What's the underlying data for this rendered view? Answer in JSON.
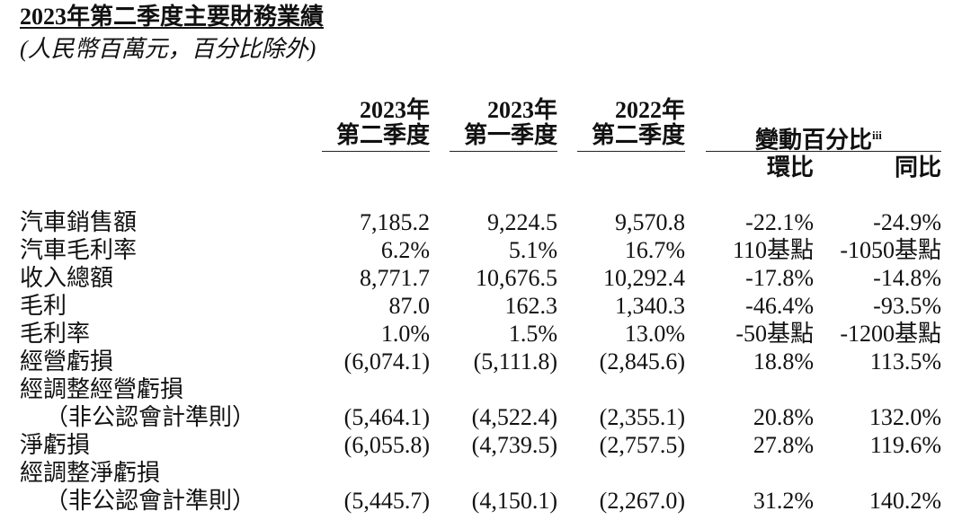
{
  "header": {
    "title": "2023年第二季度主要財務業績",
    "subtitle": "(人民幣百萬元，百分比除外)"
  },
  "table": {
    "columns": [
      [
        "2023年",
        "第二季度"
      ],
      [
        "2023年",
        "第一季度"
      ],
      [
        "2022年",
        "第二季度"
      ]
    ],
    "change_header": {
      "title": "變動百分比",
      "note": "iii",
      "columns": [
        "環比",
        "同比"
      ]
    },
    "rows": [
      {
        "label": [
          "汽車銷售額"
        ],
        "values": [
          "7,185.2",
          "9,224.5",
          "9,570.8",
          "-22.1%",
          "-24.9%"
        ]
      },
      {
        "label": [
          "汽車毛利率"
        ],
        "values": [
          "6.2%",
          "5.1%",
          "16.7%",
          "110基點",
          "-1050基點"
        ]
      },
      {
        "label": [
          "收入總額"
        ],
        "values": [
          "8,771.7",
          "10,676.5",
          "10,292.4",
          "-17.8%",
          "-14.8%"
        ]
      },
      {
        "label": [
          "毛利"
        ],
        "values": [
          "87.0",
          "162.3",
          "1,340.3",
          "-46.4%",
          "-93.5%"
        ]
      },
      {
        "label": [
          "毛利率"
        ],
        "values": [
          "1.0%",
          "1.5%",
          "13.0%",
          "-50基點",
          "-1200基點"
        ]
      },
      {
        "label": [
          "經營虧損"
        ],
        "values": [
          "(6,074.1)",
          "(5,111.8)",
          "(2,845.6)",
          "18.8%",
          "113.5%"
        ]
      },
      {
        "label": [
          "經調整經營虧損",
          "（非公認會計準則）"
        ],
        "values": [
          "(5,464.1)",
          "(4,522.4)",
          "(2,355.1)",
          "20.8%",
          "132.0%"
        ]
      },
      {
        "label": [
          "淨虧損"
        ],
        "values": [
          "(6,055.8)",
          "(4,739.5)",
          "(2,757.5)",
          "27.8%",
          "119.6%"
        ]
      },
      {
        "label": [
          "經調整淨虧損",
          "（非公認會計準則）"
        ],
        "values": [
          "(5,445.7)",
          "(4,150.1)",
          "(2,267.0)",
          "31.2%",
          "140.2%"
        ]
      }
    ]
  }
}
